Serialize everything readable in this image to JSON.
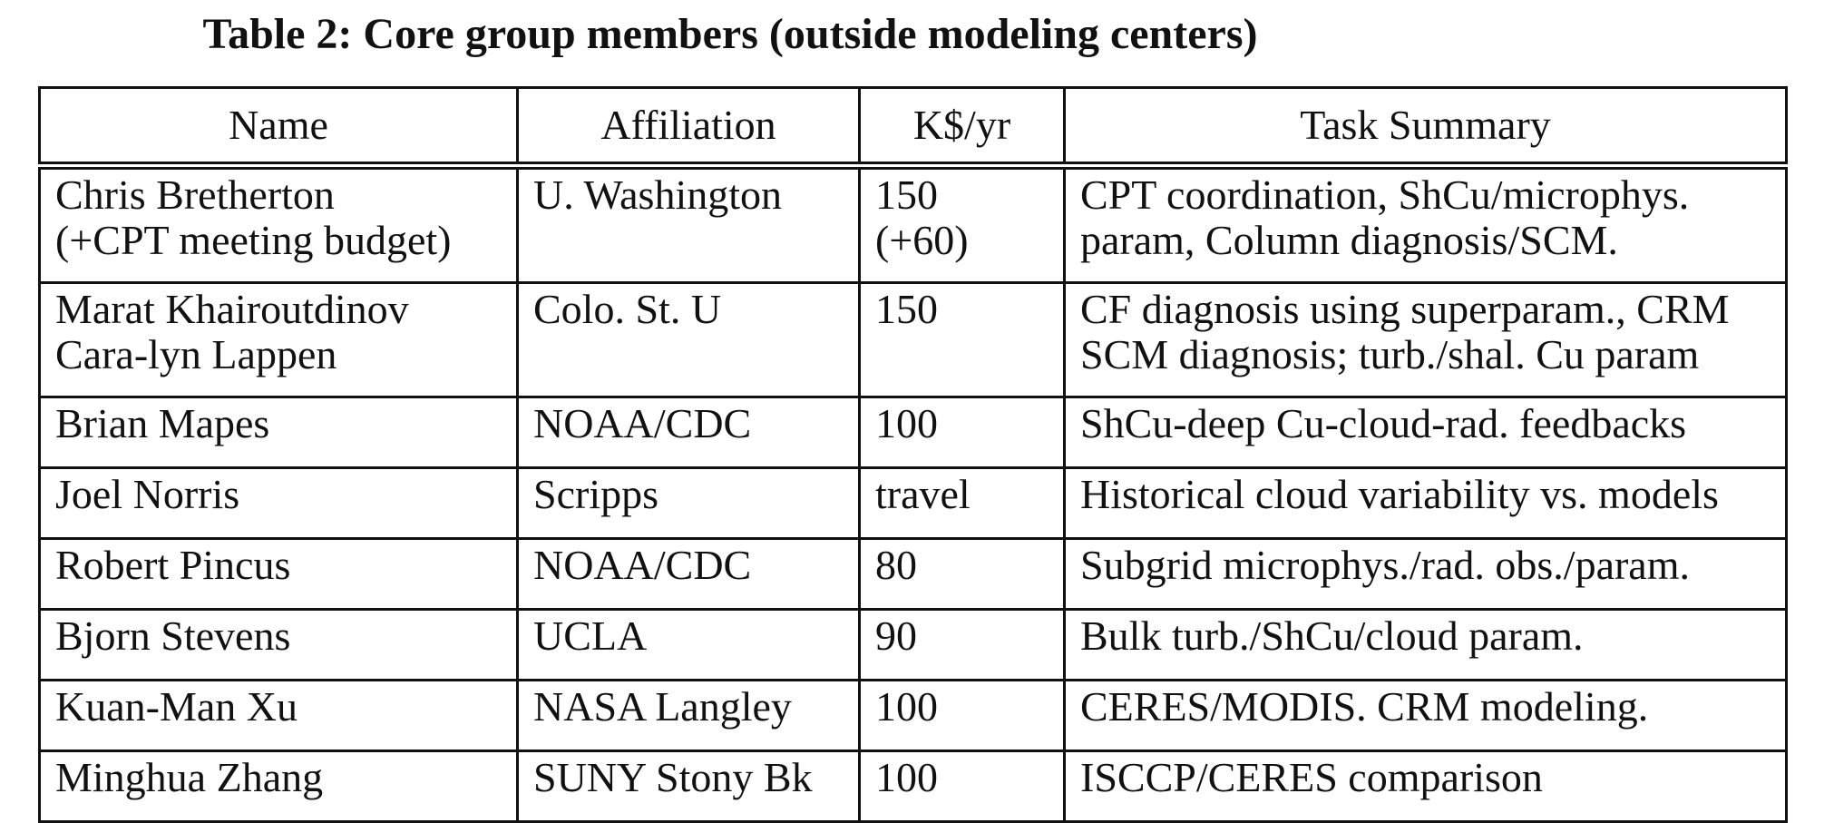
{
  "caption": "Table 2: Core group members (outside modeling centers)",
  "headers": {
    "name": "Name",
    "affiliation": "Affiliation",
    "budget": "K$/yr",
    "task": "Task Summary"
  },
  "rows": [
    {
      "name": [
        "Chris Bretherton",
        "(+CPT meeting budget)"
      ],
      "affiliation": "U. Washington",
      "budget": [
        "150",
        "(+60)"
      ],
      "task": [
        "CPT coordination, ShCu/microphys.",
        "param, Column diagnosis/SCM."
      ]
    },
    {
      "name": [
        "Marat Khairoutdinov",
        "Cara-lyn Lappen"
      ],
      "affiliation": "Colo. St. U",
      "budget": [
        "150",
        ""
      ],
      "task": [
        "CF diagnosis using superparam., CRM",
        "SCM diagnosis; turb./shal. Cu param"
      ]
    },
    {
      "name": [
        "Brian Mapes"
      ],
      "affiliation": "NOAA/CDC",
      "budget": [
        "100"
      ],
      "task": [
        "ShCu-deep Cu-cloud-rad. feedbacks"
      ]
    },
    {
      "name": [
        "Joel Norris"
      ],
      "affiliation": "Scripps",
      "budget": [
        "travel"
      ],
      "task": [
        "Historical cloud variability vs. models"
      ]
    },
    {
      "name": [
        "Robert Pincus"
      ],
      "affiliation": "NOAA/CDC",
      "budget": [
        "80"
      ],
      "task": [
        "Subgrid microphys./rad. obs./param."
      ]
    },
    {
      "name": [
        "Bjorn Stevens"
      ],
      "affiliation": "UCLA",
      "budget": [
        "90"
      ],
      "task": [
        "Bulk turb./ShCu/cloud param."
      ]
    },
    {
      "name": [
        "Kuan-Man Xu"
      ],
      "affiliation": "NASA Langley",
      "budget": [
        "100"
      ],
      "task": [
        "CERES/MODIS. CRM modeling."
      ]
    },
    {
      "name": [
        "Minghua Zhang"
      ],
      "affiliation": "SUNY Stony Bk",
      "budget": [
        "100"
      ],
      "task": [
        "ISCCP/CERES comparison"
      ]
    }
  ]
}
